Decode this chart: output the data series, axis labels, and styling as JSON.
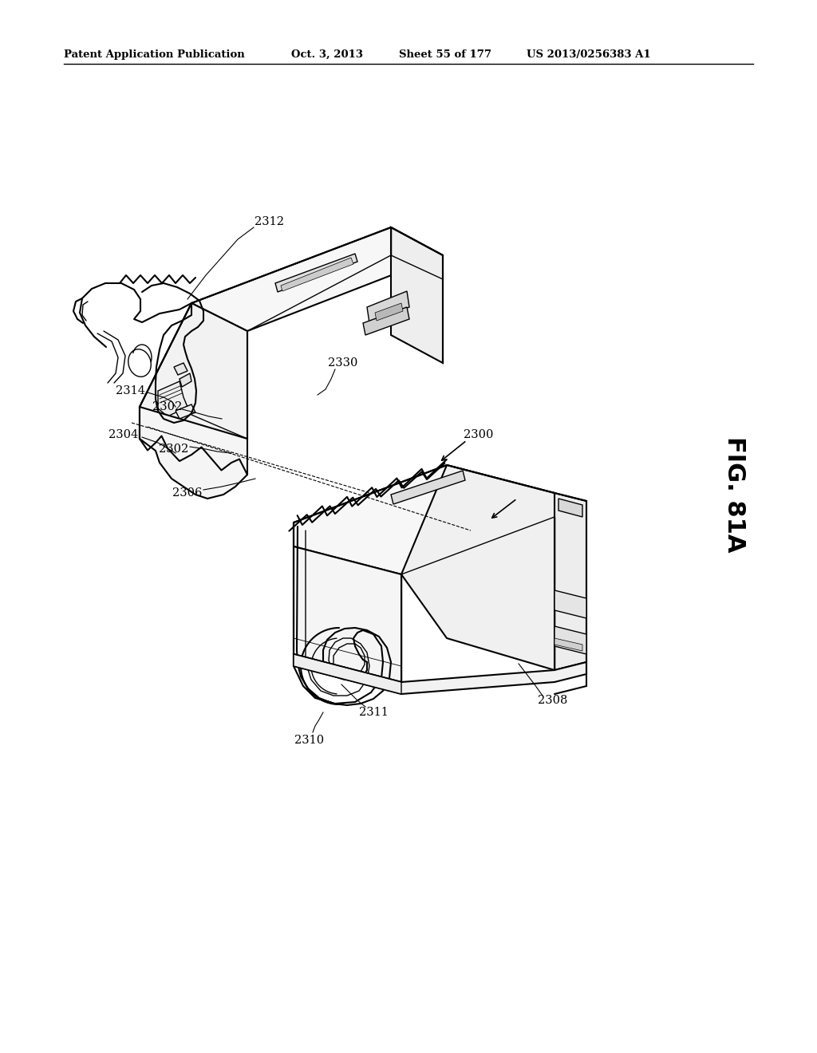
{
  "bg_color": "#ffffff",
  "header_text": "Patent Application Publication",
  "header_date": "Oct. 3, 2013",
  "header_sheet": "Sheet 55 of 177",
  "header_patent": "US 2013/0256383 A1",
  "figure_label": "FIG. 81A",
  "line_color": "#000000",
  "text_color": "#000000",
  "lw_main": 1.5,
  "lw_thin": 0.8,
  "lw_inner": 1.0
}
